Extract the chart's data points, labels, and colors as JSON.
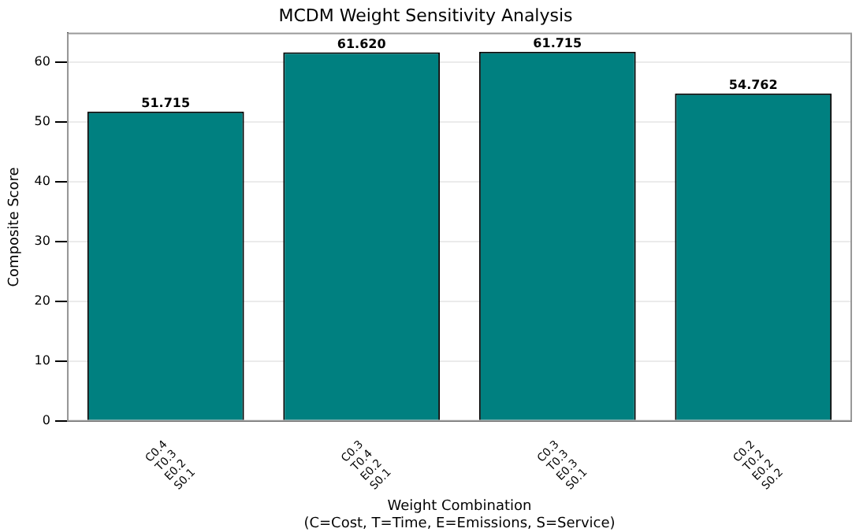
{
  "chart_data": {
    "type": "bar",
    "title": "MCDM Weight Sensitivity Analysis",
    "xlabel": "Weight Combination\n(C=Cost, T=Time, E=Emissions, S=Service)",
    "ylabel": "Composite Score",
    "categories": [
      "C0.4\nT0.3\nE0.2\nS0.1",
      "C0.3\nT0.4\nE0.2\nS0.1",
      "C0.3\nT0.3\nE0.3\nS0.1",
      "C0.2\nT0.2\nE0.2\nS0.2"
    ],
    "values": [
      51.715,
      61.62,
      61.715,
      54.762
    ],
    "color": "#008080",
    "value_labels": [
      "51.715",
      "61.620",
      "61.715",
      "54.762"
    ],
    "ylim": [
      0,
      64.8
    ],
    "yticks": [
      0,
      10,
      20,
      30,
      40,
      50,
      60
    ],
    "grid": "y"
  }
}
